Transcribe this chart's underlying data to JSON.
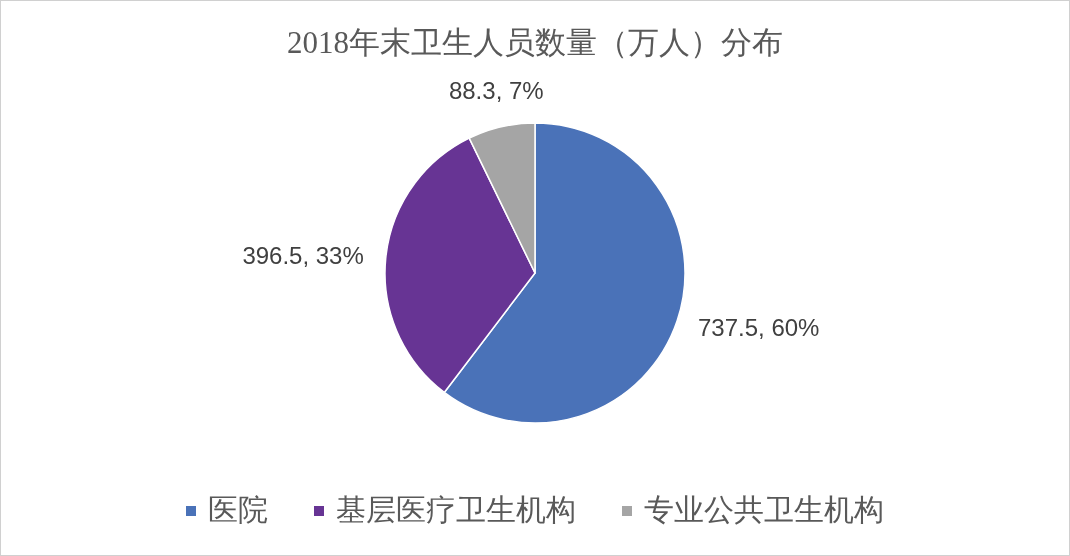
{
  "chart_data": {
    "type": "pie",
    "title": "2018年末卫生人员数量（万人）分布",
    "categories": [
      "医院",
      "基层医疗卫生机构",
      "专业公共卫生机构"
    ],
    "values": [
      737.5,
      396.5,
      88.3
    ],
    "colors": [
      "#4a72b8",
      "#673494",
      "#a5a5a5"
    ],
    "value_labels": [
      "737.5, 60%",
      "396.5, 33%",
      "88.3, 7%"
    ],
    "legend": "bottom"
  }
}
